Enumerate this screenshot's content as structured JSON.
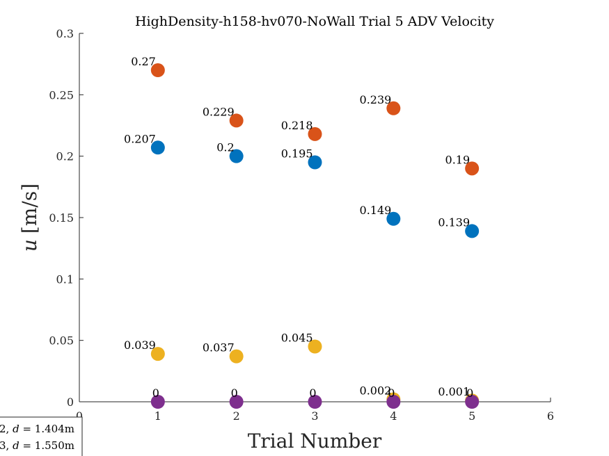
{
  "chart_data": {
    "type": "scatter",
    "title": "HighDensity-h158-hv070-NoWall Trial 5 ADV Velocity",
    "xlabel": "Trial Number",
    "ylabel": {
      "symbol": "u",
      "unit": "[m/s]"
    },
    "xlim": [
      0,
      6
    ],
    "ylim": [
      0,
      0.3
    ],
    "xticks": [
      "0",
      "1",
      "2",
      "3",
      "4",
      "5",
      "6"
    ],
    "yticks": [
      "0",
      "0.05",
      "0.1",
      "0.15",
      "0.2",
      "0.25",
      "0.3"
    ],
    "x": [
      1,
      2,
      3,
      4,
      5
    ],
    "grid": false,
    "series": [
      {
        "color": "#D95319",
        "values": [
          0.27,
          0.229,
          0.218,
          0.239,
          0.19
        ],
        "labels": [
          "0.27",
          "0.229",
          "0.218",
          "0.239",
          "0.19"
        ]
      },
      {
        "color": "#0072BD",
        "values": [
          0.207,
          0.2,
          0.195,
          0.149,
          0.139
        ],
        "labels": [
          "0.207",
          "0.2",
          "0.195",
          "0.149",
          "0.139"
        ]
      },
      {
        "color": "#EDB120",
        "values": [
          0.039,
          0.037,
          0.045,
          0.002,
          0.001
        ],
        "labels": [
          "0.039",
          "0.037",
          "0.045",
          "0.002",
          "0.001"
        ]
      },
      {
        "color": "#7E2F8E",
        "values": [
          0,
          0,
          0,
          0,
          0
        ],
        "labels": [
          "0",
          "0",
          "0",
          "0",
          "0"
        ]
      }
    ],
    "legend": {
      "placement": "bottom-left",
      "entries": [
        {
          "prefix": "2, ",
          "var": "d",
          "value": " = 1.404m"
        },
        {
          "prefix": "3, ",
          "var": "d",
          "value": " = 1.550m"
        }
      ]
    }
  }
}
